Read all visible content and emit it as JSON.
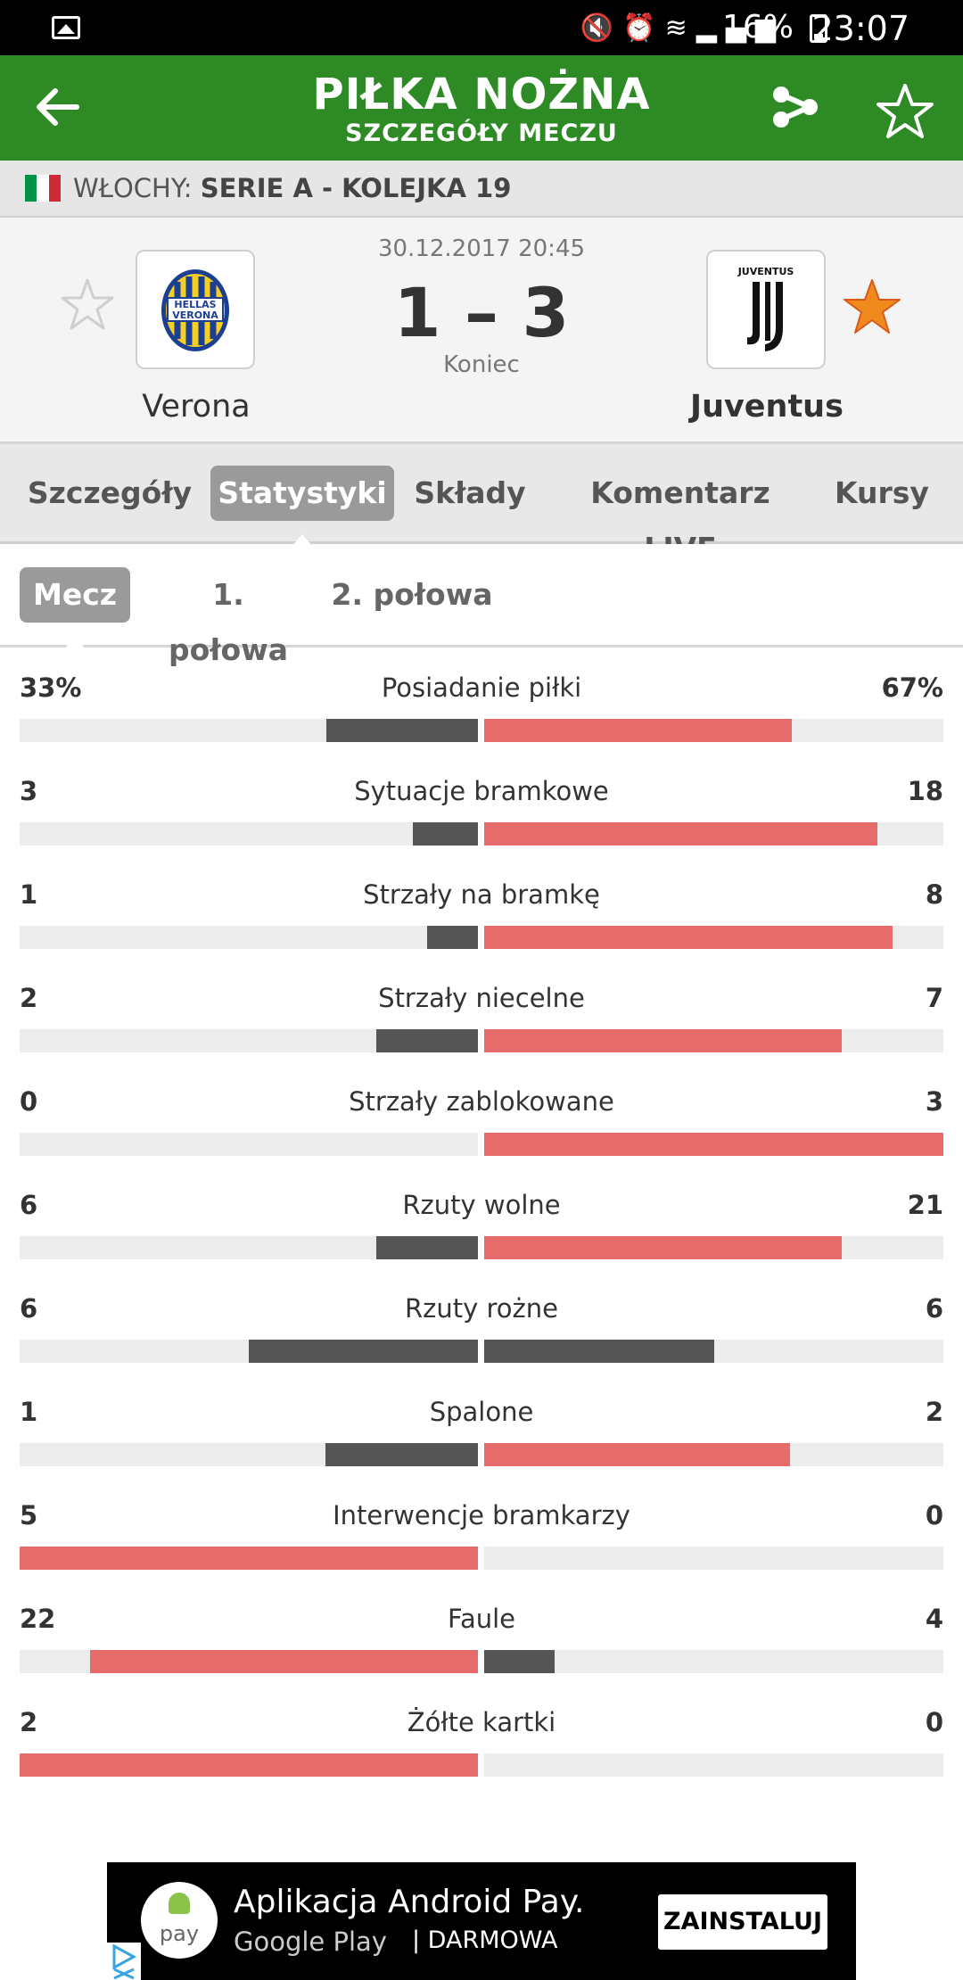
{
  "status_bar": {
    "battery": "16%",
    "time": "23:07",
    "icons": [
      "gallery-icon",
      "mute-icon",
      "alarm-icon",
      "wifi-icon",
      "signal-icon",
      "battery-icon"
    ]
  },
  "app_bar": {
    "title": "PIŁKA NOŻNA",
    "subtitle": "SZCZEGÓŁY MECZU",
    "icons": [
      "back-arrow-icon",
      "share-icon",
      "star-icon"
    ],
    "accent_color": "#2d8a24"
  },
  "league": {
    "country": "WŁOCHY:",
    "competition": "SERIE A - KOLEJKA 19",
    "flag_colors": [
      "#009246",
      "#ffffff",
      "#ce2b37"
    ]
  },
  "match": {
    "date": "30.12.2017 20:45",
    "score": "1 – 3",
    "status": "Koniec",
    "home": {
      "name": "Verona",
      "crest_text": "HELLAS VERONA",
      "favorite": false
    },
    "away": {
      "name": "Juventus",
      "crest_text": "JUVENTUS",
      "favorite": true
    }
  },
  "tabs": [
    {
      "label": "Szczegóły",
      "active": false
    },
    {
      "label": "Statystyki",
      "active": true
    },
    {
      "label": "Składy",
      "active": false
    },
    {
      "label": "Komentarz LIVE",
      "active": false
    },
    {
      "label": "Kursy",
      "active": false
    }
  ],
  "period_tabs": [
    {
      "label": "Mecz",
      "active": true
    },
    {
      "label": "1. połowa",
      "active": false
    },
    {
      "label": "2. połowa",
      "active": false
    }
  ],
  "colors": {
    "leader": "#e66b6b",
    "trailer": "#555555",
    "track": "#ececec"
  },
  "stats": [
    {
      "name": "Posiadanie piłki",
      "home": "33%",
      "away": "67%",
      "home_share": 0.33,
      "away_share": 0.67
    },
    {
      "name": "Sytuacje bramkowe",
      "home": "3",
      "away": "18",
      "home_share": 0.1429,
      "away_share": 0.8571
    },
    {
      "name": "Strzały na bramkę",
      "home": "1",
      "away": "8",
      "home_share": 0.1111,
      "away_share": 0.8889
    },
    {
      "name": "Strzały niecelne",
      "home": "2",
      "away": "7",
      "home_share": 0.2222,
      "away_share": 0.7778
    },
    {
      "name": "Strzały zablokowane",
      "home": "0",
      "away": "3",
      "home_share": 0,
      "away_share": 1
    },
    {
      "name": "Rzuty wolne",
      "home": "6",
      "away": "21",
      "home_share": 0.2222,
      "away_share": 0.7778
    },
    {
      "name": "Rzuty rożne",
      "home": "6",
      "away": "6",
      "home_share": 0.5,
      "away_share": 0.5
    },
    {
      "name": "Spalone",
      "home": "1",
      "away": "2",
      "home_share": 0.3333,
      "away_share": 0.6667
    },
    {
      "name": "Interwencje bramkarzy",
      "home": "5",
      "away": "0",
      "home_share": 1,
      "away_share": 0
    },
    {
      "name": "Faule",
      "home": "22",
      "away": "4",
      "home_share": 0.8462,
      "away_share": 0.1538
    },
    {
      "name": "Żółte kartki",
      "home": "2",
      "away": "0",
      "home_share": 1,
      "away_share": 0
    }
  ],
  "ad": {
    "logo_text": "pay",
    "headline": "Aplikacja Android Pay.",
    "store": "Google Play",
    "price": "|   DARMOWA",
    "cta": "ZAINSTALUJ"
  }
}
